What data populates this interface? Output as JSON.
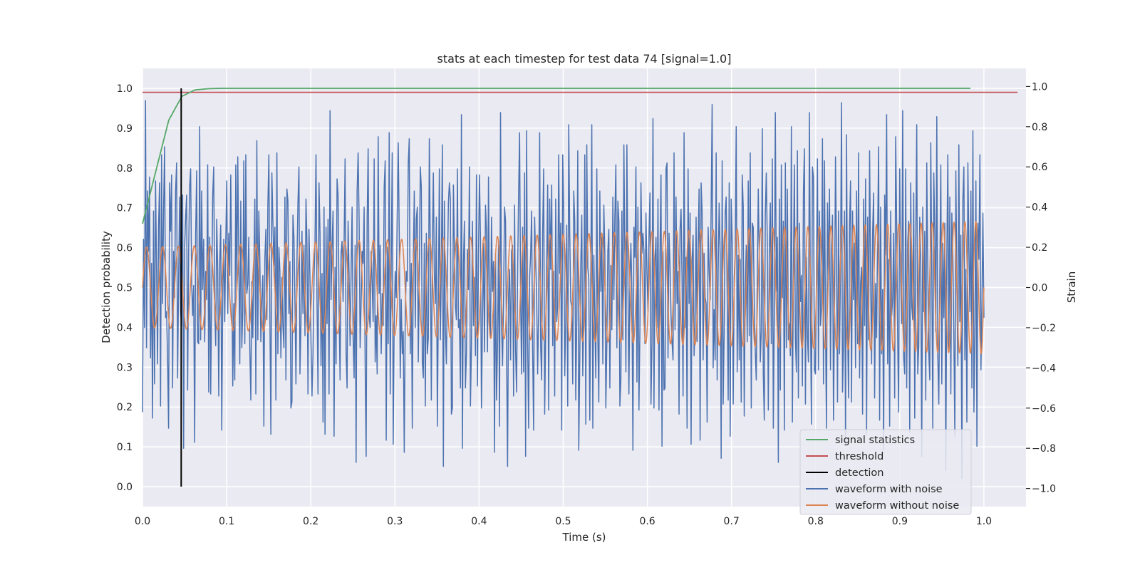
{
  "chart_data": {
    "type": "line",
    "title": "stats at each timestep for test data 74 [signal=1.0]",
    "xlabel": "Time (s)",
    "ylabel_left": "Detection probability",
    "ylabel_right": "Strain",
    "xlim": [
      0.0,
      1.05
    ],
    "ylim_left": [
      -0.05,
      1.05
    ],
    "ylim_right": [
      -1.09,
      1.09
    ],
    "xticks": [
      "0.0",
      "0.1",
      "0.2",
      "0.3",
      "0.4",
      "0.5",
      "0.6",
      "0.7",
      "0.8",
      "0.9",
      "1.0"
    ],
    "yticks_left": [
      "0.0",
      "0.1",
      "0.2",
      "0.3",
      "0.4",
      "0.5",
      "0.6",
      "0.7",
      "0.8",
      "0.9",
      "1.0"
    ],
    "yticks_right": [
      "−1.0",
      "−0.8",
      "−0.6",
      "−0.4",
      "−0.2",
      "0.0",
      "0.2",
      "0.4",
      "0.6",
      "0.8",
      "1.0"
    ],
    "grid": true,
    "legend_position": "lower-right",
    "colors": {
      "background": "#eaeaf2",
      "grid": "#ffffff",
      "signal_statistics": "#55a868",
      "threshold": "#c44e52",
      "detection": "#000000",
      "waveform_with_noise": "#4c72b0",
      "waveform_without_noise": "#dd8452"
    },
    "series": [
      {
        "name": "signal statistics",
        "axis": "left",
        "x": [
          0.0,
          0.0156,
          0.0312,
          0.0468,
          0.0625,
          0.0781,
          0.0937,
          0.109,
          0.125,
          0.3,
          0.5,
          0.7,
          0.9,
          0.984
        ],
        "y": [
          0.66,
          0.79,
          0.92,
          0.98,
          0.996,
          0.999,
          1.0,
          1.0,
          1.0,
          1.0,
          1.0,
          1.0,
          1.0,
          1.0
        ]
      },
      {
        "name": "threshold",
        "axis": "left",
        "x": [
          0.0,
          1.04
        ],
        "y": [
          0.99,
          0.99
        ]
      },
      {
        "name": "detection",
        "axis": "left",
        "x": [
          0.046,
          0.046
        ],
        "y": [
          0.0,
          1.0
        ]
      },
      {
        "name": "waveform with noise",
        "axis": "right",
        "x_range": [
          0.0,
          1.0
        ],
        "y": [
          -0.62,
          0.24,
          -0.2,
          0.93,
          -0.3,
          0.48,
          0.18,
          0.55,
          -0.35,
          0.12,
          -0.65,
          0.38,
          -0.48,
          0.53,
          0.1,
          -0.38,
          0.3,
          0.52,
          -0.59,
          0.66,
          -0.08,
          0.38,
          0.7,
          -0.15,
          -0.12,
          -0.35,
          -0.7,
          0.52,
          0.28,
          0.56,
          -0.5,
          0.18,
          -0.05,
          0.48,
          0.62,
          -0.45,
          0.03,
          0.45,
          -0.12,
          -0.19,
          0.46,
          -0.8,
          0.2,
          0.35,
          0.46,
          -0.51,
          0.18,
          0.5,
          0.59,
          0.03,
          -0.14,
          0.01,
          -0.77,
          0.26,
          0.58,
          -0.27,
          -0.28,
          0.8,
          -0.26,
          0.48,
          -0.01,
          0.24,
          -0.27,
          0.08,
          -0.06,
          0.61,
          -0.52,
          0.25,
          -0.53,
          -0.03,
          0.46,
          0.6,
          -0.11,
          -0.29,
          0.34,
          0.08,
          -0.54,
          0.13,
          0.31,
          -0.71,
          -0.05,
          0.24,
          -0.17,
          0.22,
          0.53,
          -0.13,
          0.27,
          0.06,
          0.56,
          0.07,
          -0.49,
          -0.08,
          -0.46,
          0.61,
          -0.02,
          0.65,
          0.16,
          -0.38,
          0.43,
          -0.3,
          -0.11,
          0.63,
          -0.28,
          0.66,
          -0.03,
          0.02,
          0.25,
          -0.3,
          -0.56,
          0.03,
          -0.25,
          0.09,
          0.44,
          -0.53,
          0.73,
          -0.26,
          0.38,
          0.13,
          -0.27,
          -0.05,
          0.06,
          -0.69,
          0.14,
          0.29,
          -0.16,
          0.41,
          0.66,
          -0.13,
          -0.73,
          0.57,
          0.33,
          0.11,
          0.3,
          -0.56,
          0.67,
          -0.33,
          0.2,
          0.08,
          -0.35,
          0.05,
          -0.19,
          -0.3,
          0.45,
          -0.46,
          0.49,
          0.43,
          -0.13,
          0.13,
          -0.6,
          -0.57,
          0.36,
          0.25,
          -0.06,
          -0.48,
          0.13,
          0.42,
          0.6,
          -0.43,
          -0.18,
          0.28,
          -0.13,
          0.21,
          -0.24,
          0.44,
          0.22,
          -0.53,
          0.29,
          0.06,
          -0.27,
          -0.54,
          -0.33,
          0.04,
          0.23,
          0.66,
          -0.07,
          -0.53,
          0.52,
          0.27,
          -0.39,
          0.07,
          -0.67,
          0.4,
          -0.73,
          0.3,
          -0.18,
          0.34,
          -0.53,
          0.88,
          -0.06,
          0.21,
          0.38,
          -0.74,
          0.1,
          -0.38,
          0.54,
          0.46,
          -0.08,
          -0.46,
          0.17,
          0.23,
          -0.07,
          0.21,
          0.64,
          -0.33,
          -0.5,
          0.33,
          0.05,
          -0.29,
          0.07,
          0.4,
          -0.25,
          -0.45,
          0.21,
          -0.87,
          0.48,
          0.67,
          0.33,
          -0.3,
          -0.07,
          0.18,
          0.12,
          0.4,
          -0.38,
          -0.84,
          0.34,
          0.69,
          -0.14,
          -0.2,
          0.18,
          0.02,
          -0.17,
          0.64,
          -0.37,
          -0.14,
          -0.43,
          0.75,
          -0.03,
          0.21,
          -0.33,
          -0.03,
          -0.19,
          0.5,
          0.63,
          -0.76,
          0.2,
          -0.28,
          0.77,
          -0.53,
          0.12,
          0.67,
          -0.78,
          -0.18,
          0.08,
          -0.05,
          0.36,
          0.72,
          0.27,
          -0.45,
          -0.06,
          -0.33,
          -0.22,
          -0.82,
          -0.14,
          0.08,
          0.03,
          0.62,
          0.74,
          -0.33,
          0.12,
          -0.7,
          0.12,
          0.48,
          -0.2,
          0.34,
          0.4,
          -0.37,
          0.07,
          0.6,
          0.5,
          -0.37,
          -0.45,
          0.22,
          -0.59,
          0.27,
          -0.33,
          -0.25,
          0.74,
          0.17,
          -0.56,
          0.18,
          0.57,
          0.07,
          -0.08,
          0.35,
          -0.69,
          -0.09,
          0.59,
          -0.26,
          0.11,
          0.71,
          -0.89,
          0.43,
          -0.21,
          -0.38,
          0.04,
          0.42,
          0.52,
          0.44,
          -0.63,
          -0.6,
          0.51,
          0.21,
          -0.09,
          -0.16,
          0.59,
          -0.2,
          -0.16,
          -0.5,
          0.86,
          -0.8,
          0.12,
          0.33,
          -0.5,
          -0.33,
          0.19,
          -0.01,
          0.6,
          -0.59,
          -0.29,
          0.33,
          -0.19,
          0.05,
          -0.34,
          0.56,
          -0.49,
          0.16,
          0.56,
          0.24,
          -0.6,
          -0.16,
          0.22,
          -0.32,
          0.41,
          0.28,
          -0.32,
          0.55,
          -0.12,
          -0.25,
          0.35,
          -0.02,
          0.13,
          -0.82,
          0.17,
          -0.56,
          -0.28,
          0.23,
          -0.69,
          0.87,
          -0.18,
          -0.39,
          -0.06,
          0.4,
          0.33,
          -0.31,
          -0.89,
          -0.04,
          0.09,
          -0.36,
          0.18,
          0.21,
          -0.54,
          0.41,
          -0.31,
          -0.52,
          0.06,
          0.46,
          0.77,
          -0.04,
          -0.43,
          0.3,
          -0.42,
          0.57,
          -0.84,
          0.78,
          -0.26,
          -0.7,
          0.05,
          0.16,
          0.38,
          -0.31,
          -0.71,
          0.35,
          0.13,
          -0.04,
          -0.43,
          -0.12,
          0.77,
          -0.29,
          -0.46,
          0.27,
          0.59,
          -0.63,
          -0.23,
          0.1,
          0.51,
          -0.61,
          0.44,
          0.09,
          0.51,
          -0.29,
          0.08,
          -0.54,
          0.44,
          -0.17,
          -0.09,
          0.66,
          0.07,
          0.32,
          -0.71,
          0.66,
          0.37,
          -0.44,
          -0.17,
          0.31,
          -0.59,
          0.81,
          0.27,
          -0.07,
          -0.09,
          -0.48,
          0.48,
          0.33,
          -0.56,
          -0.16,
          0.68,
          -0.81,
          -0.37,
          0.11,
          0.36,
          -0.44,
          -0.12,
          0.66,
          -0.68,
          0.71,
          0.1,
          0.04,
          -0.66,
          0.05,
          0.81,
          -0.7,
          0.16,
          -0.14,
          -0.45,
          0.59,
          -0.24,
          -0.57,
          0.48,
          -0.02,
          0.25,
          -0.38,
          0.41,
          0.17,
          -0.6,
          -0.28,
          0.18,
          0.29,
          -0.5,
          0.11,
          -0.21,
          0.45,
          -0.06,
          0.35,
          0.61,
          -0.3,
          0.43,
          0.33,
          -0.59,
          -0.46,
          0.38,
          -0.26,
          0.71,
          0.14,
          -0.42,
          0.71,
          0.06,
          -0.53,
          0.04,
          0.22,
          -0.03,
          -0.81,
          0.3,
          0.15,
          0.6,
          -0.47,
          0.4,
          -0.61,
          -0.19,
          0.52,
          0.17,
          0.27,
          0.18,
          -0.28,
          0.37,
          0.08,
          -0.12,
          0.25,
          0.47,
          -0.58,
          -0.27,
          0.84,
          -0.6,
          0.13,
          0.25,
          -0.2,
          0.44,
          -0.61,
          0.18,
          0.56,
          -0.79,
          0.18,
          -0.51,
          -0.5,
          0.59,
          0.62,
          -0.35,
          0.27,
          0.11,
          -0.14,
          -0.27,
          -0.36,
          0.67,
          -0.21,
          0.45,
          -0.08,
          0.08,
          -0.63,
          0.29,
          0.39,
          0.04,
          -0.54,
          0.77,
          -0.2,
          0.15,
          -0.7,
          0.59,
          -0.08,
          0.37,
          -0.78,
          0.13,
          0.26,
          -0.34,
          -0.19,
          0.35,
          -0.27,
          0.21,
          0.49,
          -0.76,
          0.52,
          0.38,
          -0.36,
          0.17,
          -0.05,
          -0.08,
          -0.67,
          0.3,
          0.09,
          -0.06,
          0.39,
          0.91,
          -0.4,
          -0.11,
          -0.36,
          0.67,
          -0.46,
          0.08,
          0.42,
          0.17,
          -0.85,
          0.63,
          -0.58,
          -0.22,
          0.37,
          0.45,
          -0.05,
          -0.56,
          0.52,
          -0.74,
          0.44,
          0.23,
          -0.58,
          0.05,
          0.17,
          0.8,
          -0.42,
          0.16,
          -0.36,
          0.14,
          -0.57,
          0.56,
          0.4,
          -0.64,
          -0.01,
          0.21,
          -0.27,
          0.53,
          -0.24,
          0.67,
          -0.6,
          0.32,
          0.3,
          -0.08,
          -0.32,
          -0.46,
          0.04,
          0.49,
          0.15,
          -0.37,
          -0.22,
          0.79,
          -0.43,
          -0.66,
          0.36,
          0.57,
          0.22,
          -0.61,
          0.19,
          0.42,
          -0.28,
          0.64,
          -0.7,
          -0.12,
          0.87,
          -0.02,
          0.25,
          -0.87,
          0.44,
          -0.51,
          0.61,
          -0.05,
          0.33,
          -0.71,
          0.62,
          -0.3,
          0.49,
          -0.26,
          -0.18,
          -0.34,
          0.8,
          -0.67,
          0.06,
          0.61,
          -0.25,
          -0.42,
          0.68,
          -0.55,
          0.32,
          -0.07,
          0.06,
          -0.49,
          0.47,
          0.69,
          -0.58,
          0.15,
          -0.24,
          -0.37,
          0.87,
          -0.1,
          -0.68,
          0.6,
          0.55,
          -0.41,
          -0.43,
          0.06,
          0.64,
          -0.41,
          0.38,
          -0.19,
          -0.11,
          0.74,
          -0.48,
          0.63,
          -0.16,
          -0.7,
          0.42,
          0.04,
          0.49,
          -0.41,
          0.18,
          0.36,
          -0.66,
          -0.13,
          0.65,
          0.18,
          -0.57,
          0.38,
          -0.33,
          0.1,
          0.92,
          -0.52,
          -0.28,
          0.38,
          -0.78,
          0.76,
          -0.16,
          -0.55,
          0.31,
          0.53,
          -0.57,
          0.38,
          -0.06,
          0.22,
          -0.4,
          0.48,
          -0.28,
          0.67,
          -0.45,
          0.02,
          0.1,
          -0.63,
          0.44,
          -0.19,
          0.54,
          -0.73,
          0.35,
          -0.26,
          0.68,
          0.06,
          -0.38,
          0.27,
          0.47,
          -0.55,
          0.02,
          -0.25,
          0.26,
          0.7,
          -0.66,
          0.4,
          -0.33,
          -0.01,
          -0.81,
          0.46,
          0.16,
          0.86,
          -0.38,
          0.14,
          -0.69,
          0.38,
          -0.14,
          -0.06,
          0.27,
          -0.55,
          0.75,
          0.31,
          -0.26,
          -0.62,
          0.59,
          0.03,
          -0.18,
          0.88,
          -0.35,
          -0.43,
          0.59,
          -0.5,
          0.22,
          0.33,
          -0.72,
          0.52,
          -0.09,
          -0.16,
          0.47,
          -0.65,
          0.24,
          0.81,
          -0.43,
          -0.29,
          0.35,
          0.11,
          -0.84,
          0.4,
          -0.12,
          0.28,
          -0.56,
          0.62,
          0.08,
          -0.32,
          -0.46,
          0.72,
          0.09,
          -0.7,
          0.57,
          0.28,
          -0.22,
          0.85,
          -0.34,
          -0.58,
          0.05,
          0.61,
          -0.48,
          0.22,
          -0.15,
          0.32,
          -0.91,
          0.14,
          0.66,
          -0.3,
          0.45,
          -0.53,
          0.37,
          0.16,
          -0.23,
          -0.74,
          0.58,
          0.02,
          -0.39,
          0.71,
          -0.17,
          0.26,
          -0.95,
          0.44,
          0.6,
          -0.36,
          0.09,
          -0.67,
          0.62,
          0.19,
          -0.12,
          0.48,
          -0.5,
          0.78,
          -0.62,
          -0.24,
          0.53,
          -0.79,
          0.32,
          0.14,
          0.66,
          -0.41,
          -0.08,
          0.37,
          -0.15
        ]
      },
      {
        "name": "waveform without noise",
        "axis": "right",
        "x_range": [
          0.0,
          1.0
        ],
        "function": "chirp",
        "amplitude_start": 0.2,
        "amplitude_end": 0.33,
        "cycles": 65
      }
    ]
  },
  "legend": {
    "items": [
      {
        "label": "signal statistics",
        "color": "#55a868"
      },
      {
        "label": "threshold",
        "color": "#c44e52"
      },
      {
        "label": "detection",
        "color": "#000000"
      },
      {
        "label": "waveform with noise",
        "color": "#4c72b0"
      },
      {
        "label": "waveform without noise",
        "color": "#dd8452"
      }
    ]
  }
}
